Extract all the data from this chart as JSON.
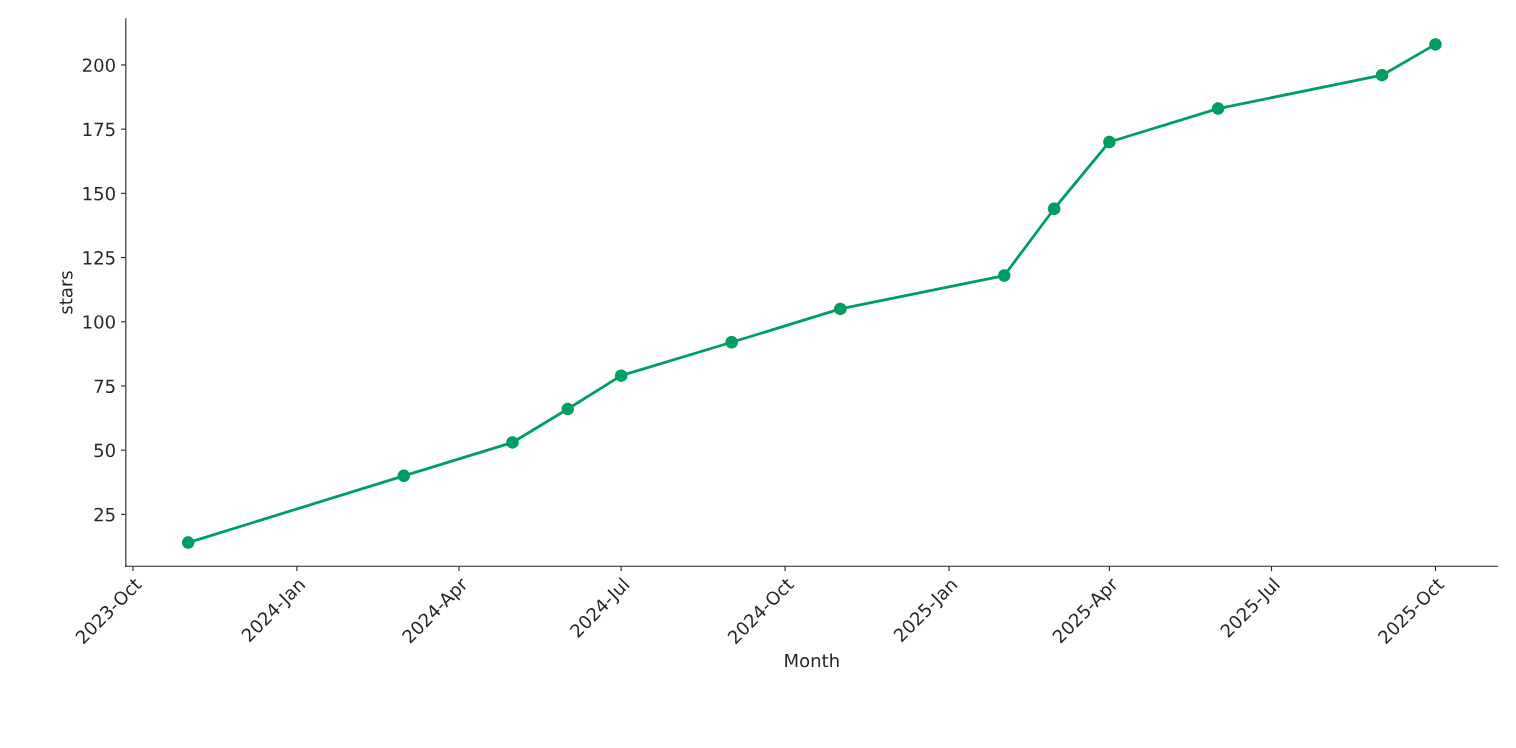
{
  "chart_data": {
    "type": "line",
    "xlabel": "Month",
    "ylabel": "stars",
    "x": [
      "2023-11",
      "2024-03",
      "2024-05",
      "2024-06",
      "2024-07",
      "2024-09",
      "2024-11",
      "2025-02",
      "2025-03",
      "2025-04",
      "2025-06",
      "2025-09",
      "2025-10"
    ],
    "series": [
      {
        "color": "#009e60",
        "values": [
          14,
          40,
          53,
          66,
          79,
          92,
          105,
          118,
          144,
          170,
          183,
          196,
          208
        ]
      }
    ],
    "marker": "circle",
    "line_style": "solid",
    "grid": false,
    "legend": false,
    "xlim": [
      "2023-09-27",
      "2025-11-05"
    ],
    "xticks": [
      {
        "value": "2023-10",
        "label": "2023-Oct"
      },
      {
        "value": "2024-01",
        "label": "2024-Jan"
      },
      {
        "value": "2024-04",
        "label": "2024-Apr"
      },
      {
        "value": "2024-07",
        "label": "2024-Jul"
      },
      {
        "value": "2024-10",
        "label": "2024-Oct"
      },
      {
        "value": "2025-01",
        "label": "2025-Jan"
      },
      {
        "value": "2025-04",
        "label": "2025-Apr"
      },
      {
        "value": "2025-07",
        "label": "2025-Jul"
      },
      {
        "value": "2025-10",
        "label": "2025-Oct"
      }
    ],
    "ylim": [
      4.8,
      218
    ],
    "yticks": [
      25,
      50,
      75,
      100,
      125,
      150,
      175,
      200
    ]
  }
}
